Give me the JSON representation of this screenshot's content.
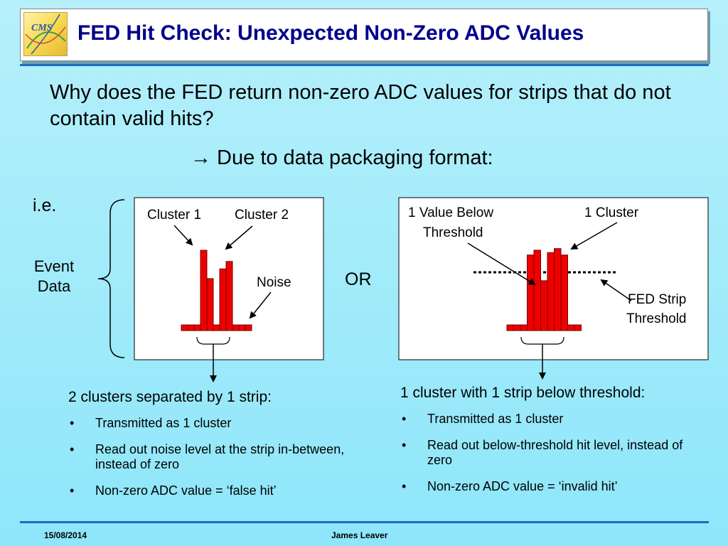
{
  "header": {
    "title": "FED Hit Check: Unexpected Non-Zero ADC Values",
    "logo_text": "CMS"
  },
  "intro": {
    "question": "Why does the FED return non-zero ADC values for strips that do not contain valid hits?",
    "answer": "→ Due to data packaging format:"
  },
  "labels": {
    "ie": "i.e.",
    "event_data": "Event Data",
    "or": "OR"
  },
  "left_diagram": {
    "cluster1": "Cluster 1",
    "cluster2": "Cluster 2",
    "noise": "Noise",
    "strip_levels": [
      0,
      0,
      0,
      1.0,
      0.62,
      0,
      0.75,
      0.85,
      0,
      0,
      0
    ]
  },
  "right_diagram": {
    "below_line1": "1 Value Below",
    "below_line2": "Threshold",
    "cluster": "1 Cluster",
    "thr_line1": "FED Strip",
    "thr_line2": "Threshold",
    "strip_levels": [
      0,
      0,
      0,
      0.87,
      0.93,
      0.55,
      0.9,
      0.95,
      0.87,
      0,
      0
    ]
  },
  "left_desc": {
    "heading": "2 clusters separated by 1 strip:",
    "bullets": [
      "Transmitted as 1 cluster",
      "Read out noise level at the strip in-between, instead of zero",
      "Non-zero ADC value = ‘false hit’"
    ]
  },
  "right_desc": {
    "heading": "1 cluster with 1 strip below threshold:",
    "bullets": [
      "Transmitted as 1 cluster",
      "Read out below-threshold hit level, instead of zero",
      "Non-zero ADC value = ‘invalid hit’"
    ]
  },
  "footer": {
    "date": "15/08/2014",
    "author": "James Leaver"
  },
  "colors": {
    "title": "#00008b",
    "bar_fill": "#ee0000",
    "bar_stroke": "#7a0000",
    "accent_line": "#1a6ec0"
  }
}
